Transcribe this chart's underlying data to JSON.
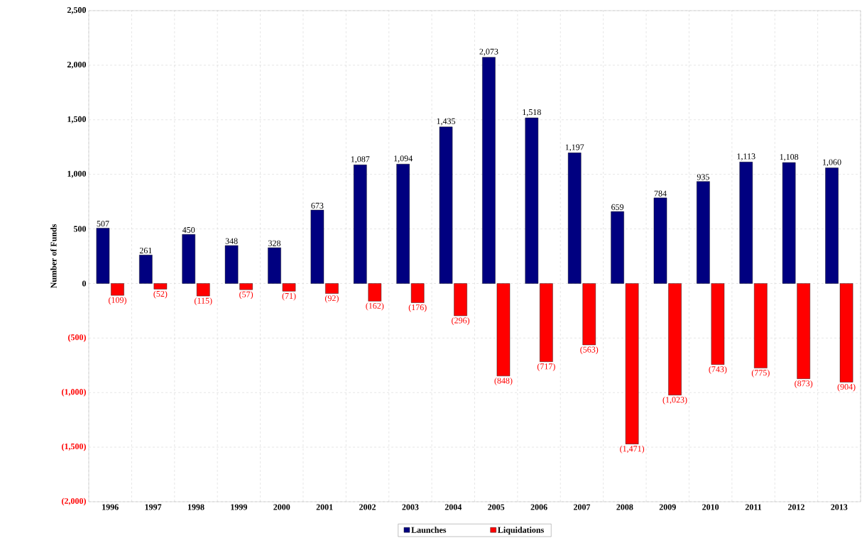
{
  "chart_data": {
    "type": "bar",
    "ylabel": "Number of Funds",
    "categories": [
      "1996",
      "1997",
      "1998",
      "1999",
      "2000",
      "2001",
      "2002",
      "2003",
      "2004",
      "2005",
      "2006",
      "2007",
      "2008",
      "2009",
      "2010",
      "2011",
      "2012",
      "2013"
    ],
    "series": [
      {
        "name": "Launches",
        "color": "#000080",
        "values": [
          507,
          261,
          450,
          348,
          328,
          673,
          1087,
          1094,
          1435,
          2073,
          1518,
          1197,
          659,
          784,
          935,
          1113,
          1108,
          1060
        ],
        "value_labels": [
          "507",
          "261",
          "450",
          "348",
          "328",
          "673",
          "1,087",
          "1,094",
          "1,435",
          "2,073",
          "1,518",
          "1,197",
          "659",
          "784",
          "935",
          "1,113",
          "1,108",
          "1,060"
        ]
      },
      {
        "name": "Liquidations",
        "color": "#ff0000",
        "values": [
          -109,
          -52,
          -115,
          -57,
          -71,
          -92,
          -162,
          -176,
          -296,
          -848,
          -717,
          -563,
          -1471,
          -1023,
          -743,
          -775,
          -873,
          -904
        ],
        "value_labels": [
          "(109)",
          "(52)",
          "(115)",
          "(57)",
          "(71)",
          "(92)",
          "(162)",
          "(176)",
          "(296)",
          "(848)",
          "(717)",
          "(563)",
          "(1,471)",
          "(1,023)",
          "(743)",
          "(775)",
          "(873)",
          "(904)"
        ]
      }
    ],
    "ylim": [
      -2000,
      2500
    ],
    "yticks": [
      {
        "value": 2500,
        "label": "2,500"
      },
      {
        "value": 2000,
        "label": "2,000"
      },
      {
        "value": 1500,
        "label": "1,500"
      },
      {
        "value": 1000,
        "label": "1,000"
      },
      {
        "value": 500,
        "label": "500"
      },
      {
        "value": 0,
        "label": "0"
      },
      {
        "value": -500,
        "label": "(500)"
      },
      {
        "value": -1000,
        "label": "(1,000)"
      },
      {
        "value": -1500,
        "label": "(1,500)"
      },
      {
        "value": -2000,
        "label": "(2,000)"
      }
    ],
    "grid": true,
    "legend": "bottom"
  }
}
